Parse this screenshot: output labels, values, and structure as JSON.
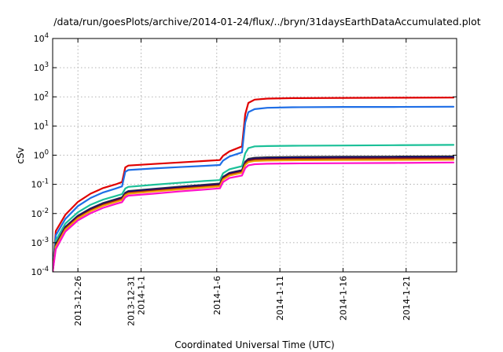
{
  "chart_data": {
    "type": "line",
    "title": "/data/run/goesPlots/archive/2014-01-24/flux/../bryn/31daysEarthDataAccumulated.plot",
    "xlabel": "Coordinated Universal Time (UTC)",
    "ylabel": "cSv",
    "y_scale": "log",
    "ylim": [
      0.0001,
      10000
    ],
    "xlim": [
      "2013-12-24",
      "2014-01-25"
    ],
    "grid": true,
    "legend": "none",
    "x_ticks": [
      {
        "date": "2013-12-26",
        "lines": [
          "2013-12-26"
        ]
      },
      {
        "date": "2013-12-31",
        "lines": [
          "2013-12-31",
          "2014-1-1"
        ]
      },
      {
        "date": "2014-01-06",
        "lines": [
          "2014-1-6"
        ]
      },
      {
        "date": "2014-01-11",
        "lines": [
          "2014-1-11"
        ]
      },
      {
        "date": "2014-01-16",
        "lines": [
          "2014-1-16"
        ]
      },
      {
        "date": "2014-01-21",
        "lines": [
          "2014-1-21"
        ]
      }
    ],
    "y_ticks": [
      {
        "value": 0.0001,
        "base": "10",
        "exp": "-4"
      },
      {
        "value": 0.001,
        "base": "10",
        "exp": "-3"
      },
      {
        "value": 0.01,
        "base": "10",
        "exp": "-2"
      },
      {
        "value": 0.1,
        "base": "10",
        "exp": "-1"
      },
      {
        "value": 1,
        "base": "10",
        "exp": "0"
      },
      {
        "value": 10,
        "base": "10",
        "exp": "1"
      },
      {
        "value": 100,
        "base": "10",
        "exp": "2"
      },
      {
        "value": 1000,
        "base": "10",
        "exp": "3"
      },
      {
        "value": 10000,
        "base": "10",
        "exp": "4"
      }
    ],
    "series": [
      {
        "color": "#e00000",
        "points": [
          [
            "2013-12-24",
            0.0001
          ],
          [
            "2013-12-24 06:00",
            0.0025
          ],
          [
            "2013-12-25",
            0.009
          ],
          [
            "2013-12-26",
            0.025
          ],
          [
            "2013-12-27",
            0.048
          ],
          [
            "2013-12-28",
            0.075
          ],
          [
            "2013-12-29",
            0.1
          ],
          [
            "2013-12-29 12:00",
            0.12
          ],
          [
            "2013-12-29 18:00",
            0.38
          ],
          [
            "2013-12-30",
            0.44
          ],
          [
            "2014-01-01",
            0.5
          ],
          [
            "2014-01-03",
            0.56
          ],
          [
            "2014-01-05",
            0.63
          ],
          [
            "2014-01-06 06:00",
            0.68
          ],
          [
            "2014-01-06 12:00",
            0.95
          ],
          [
            "2014-01-07",
            1.35
          ],
          [
            "2014-01-08",
            2.0
          ],
          [
            "2014-01-08 06:00",
            25
          ],
          [
            "2014-01-08 12:00",
            62
          ],
          [
            "2014-01-09",
            80
          ],
          [
            "2014-01-10",
            87
          ],
          [
            "2014-01-12",
            90
          ],
          [
            "2014-01-16",
            92
          ],
          [
            "2014-01-20",
            93
          ],
          [
            "2014-01-24 18:00",
            94
          ]
        ]
      },
      {
        "color": "#1e6ee6",
        "points": [
          [
            "2013-12-24",
            0.0001
          ],
          [
            "2013-12-24 06:00",
            0.0018
          ],
          [
            "2013-12-25",
            0.0065
          ],
          [
            "2013-12-26",
            0.018
          ],
          [
            "2013-12-27",
            0.034
          ],
          [
            "2013-12-28",
            0.053
          ],
          [
            "2013-12-29",
            0.072
          ],
          [
            "2013-12-29 12:00",
            0.085
          ],
          [
            "2013-12-29 18:00",
            0.27
          ],
          [
            "2013-12-30",
            0.31
          ],
          [
            "2014-01-01",
            0.35
          ],
          [
            "2014-01-03",
            0.39
          ],
          [
            "2014-01-05",
            0.43
          ],
          [
            "2014-01-06 06:00",
            0.46
          ],
          [
            "2014-01-06 12:00",
            0.65
          ],
          [
            "2014-01-07",
            0.9
          ],
          [
            "2014-01-08",
            1.25
          ],
          [
            "2014-01-08 06:00",
            13
          ],
          [
            "2014-01-08 12:00",
            30
          ],
          [
            "2014-01-09",
            38
          ],
          [
            "2014-01-10",
            42
          ],
          [
            "2014-01-12",
            44
          ],
          [
            "2014-01-16",
            45
          ],
          [
            "2014-01-20",
            45
          ],
          [
            "2014-01-24 18:00",
            46
          ]
        ]
      },
      {
        "color": "#1bc098",
        "points": [
          [
            "2013-12-24",
            0.0001
          ],
          [
            "2013-12-24 06:00",
            0.0012
          ],
          [
            "2013-12-25",
            0.0045
          ],
          [
            "2013-12-26",
            0.011
          ],
          [
            "2013-12-27",
            0.02
          ],
          [
            "2013-12-28",
            0.03
          ],
          [
            "2013-12-29",
            0.04
          ],
          [
            "2013-12-29 12:00",
            0.046
          ],
          [
            "2013-12-29 18:00",
            0.072
          ],
          [
            "2013-12-30",
            0.082
          ],
          [
            "2014-01-01",
            0.097
          ],
          [
            "2014-01-03",
            0.113
          ],
          [
            "2014-01-05",
            0.13
          ],
          [
            "2014-01-06 06:00",
            0.14
          ],
          [
            "2014-01-06 12:00",
            0.24
          ],
          [
            "2014-01-07",
            0.33
          ],
          [
            "2014-01-08",
            0.42
          ],
          [
            "2014-01-08 06:00",
            1.15
          ],
          [
            "2014-01-08 12:00",
            1.75
          ],
          [
            "2014-01-09",
            2.0
          ],
          [
            "2014-01-10",
            2.05
          ],
          [
            "2014-01-12",
            2.1
          ],
          [
            "2014-01-16",
            2.15
          ],
          [
            "2014-01-20",
            2.2
          ],
          [
            "2014-01-24 18:00",
            2.25
          ]
        ]
      },
      {
        "color": "#404040",
        "points": [
          [
            "2013-12-24",
            0.0001
          ],
          [
            "2013-12-24 06:00",
            0.0009
          ],
          [
            "2013-12-25",
            0.0035
          ],
          [
            "2013-12-26",
            0.0085
          ],
          [
            "2013-12-27",
            0.015
          ],
          [
            "2013-12-28",
            0.023
          ],
          [
            "2013-12-29",
            0.031
          ],
          [
            "2013-12-29 12:00",
            0.036
          ],
          [
            "2013-12-29 18:00",
            0.052
          ],
          [
            "2013-12-30",
            0.059
          ],
          [
            "2014-01-01",
            0.07
          ],
          [
            "2014-01-03",
            0.083
          ],
          [
            "2014-01-05",
            0.097
          ],
          [
            "2014-01-06 06:00",
            0.107
          ],
          [
            "2014-01-06 12:00",
            0.18
          ],
          [
            "2014-01-07",
            0.25
          ],
          [
            "2014-01-08",
            0.31
          ],
          [
            "2014-01-08 06:00",
            0.6
          ],
          [
            "2014-01-08 12:00",
            0.75
          ],
          [
            "2014-01-09",
            0.82
          ],
          [
            "2014-01-10",
            0.85
          ],
          [
            "2014-01-12",
            0.87
          ],
          [
            "2014-01-16",
            0.89
          ],
          [
            "2014-01-20",
            0.9
          ],
          [
            "2014-01-24 18:00",
            0.92
          ]
        ]
      },
      {
        "color": "#000080",
        "points": [
          [
            "2013-12-24",
            0.0001
          ],
          [
            "2013-12-24 06:00",
            0.00085
          ],
          [
            "2013-12-25",
            0.0033
          ],
          [
            "2013-12-26",
            0.008
          ],
          [
            "2013-12-27",
            0.0142
          ],
          [
            "2013-12-28",
            0.0218
          ],
          [
            "2013-12-29",
            0.0295
          ],
          [
            "2013-12-29 12:00",
            0.034
          ],
          [
            "2013-12-29 18:00",
            0.049
          ],
          [
            "2013-12-30",
            0.056
          ],
          [
            "2014-01-01",
            0.066
          ],
          [
            "2014-01-03",
            0.078
          ],
          [
            "2014-01-05",
            0.091
          ],
          [
            "2014-01-06 06:00",
            0.1
          ],
          [
            "2014-01-06 12:00",
            0.17
          ],
          [
            "2014-01-07",
            0.235
          ],
          [
            "2014-01-08",
            0.29
          ],
          [
            "2014-01-08 06:00",
            0.56
          ],
          [
            "2014-01-08 12:00",
            0.7
          ],
          [
            "2014-01-09",
            0.76
          ],
          [
            "2014-01-10",
            0.79
          ],
          [
            "2014-01-12",
            0.81
          ],
          [
            "2014-01-16",
            0.83
          ],
          [
            "2014-01-20",
            0.84
          ],
          [
            "2014-01-24 18:00",
            0.85
          ]
        ]
      },
      {
        "color": "#8b1a1a",
        "points": [
          [
            "2013-12-24",
            0.0001
          ],
          [
            "2013-12-24 06:00",
            0.0008
          ],
          [
            "2013-12-25",
            0.0031
          ],
          [
            "2013-12-26",
            0.0075
          ],
          [
            "2013-12-27",
            0.0133
          ],
          [
            "2013-12-28",
            0.0205
          ],
          [
            "2013-12-29",
            0.0277
          ],
          [
            "2013-12-29 12:00",
            0.032
          ],
          [
            "2013-12-29 18:00",
            0.046
          ],
          [
            "2013-12-30",
            0.052
          ],
          [
            "2014-01-01",
            0.062
          ],
          [
            "2014-01-03",
            0.073
          ],
          [
            "2014-01-05",
            0.085
          ],
          [
            "2014-01-06 06:00",
            0.094
          ],
          [
            "2014-01-06 12:00",
            0.16
          ],
          [
            "2014-01-07",
            0.22
          ],
          [
            "2014-01-08",
            0.27
          ],
          [
            "2014-01-08 06:00",
            0.52
          ],
          [
            "2014-01-08 12:00",
            0.65
          ],
          [
            "2014-01-09",
            0.71
          ],
          [
            "2014-01-10",
            0.73
          ],
          [
            "2014-01-12",
            0.75
          ],
          [
            "2014-01-16",
            0.77
          ],
          [
            "2014-01-20",
            0.78
          ],
          [
            "2014-01-24 18:00",
            0.79
          ]
        ]
      },
      {
        "color": "#f0a000",
        "points": [
          [
            "2013-12-24",
            0.0001
          ],
          [
            "2013-12-24 06:00",
            0.00072
          ],
          [
            "2013-12-25",
            0.0028
          ],
          [
            "2013-12-26",
            0.0068
          ],
          [
            "2013-12-27",
            0.012
          ],
          [
            "2013-12-28",
            0.0185
          ],
          [
            "2013-12-29",
            0.025
          ],
          [
            "2013-12-29 12:00",
            0.029
          ],
          [
            "2013-12-29 18:00",
            0.042
          ],
          [
            "2013-12-30",
            0.048
          ],
          [
            "2014-01-01",
            0.057
          ],
          [
            "2014-01-03",
            0.067
          ],
          [
            "2014-01-05",
            0.078
          ],
          [
            "2014-01-06 06:00",
            0.086
          ],
          [
            "2014-01-06 12:00",
            0.145
          ],
          [
            "2014-01-07",
            0.2
          ],
          [
            "2014-01-08",
            0.25
          ],
          [
            "2014-01-08 06:00",
            0.46
          ],
          [
            "2014-01-08 12:00",
            0.58
          ],
          [
            "2014-01-09",
            0.63
          ],
          [
            "2014-01-10",
            0.65
          ],
          [
            "2014-01-12",
            0.67
          ],
          [
            "2014-01-16",
            0.68
          ],
          [
            "2014-01-20",
            0.69
          ],
          [
            "2014-01-24 18:00",
            0.7
          ]
        ]
      },
      {
        "color": "#ff10c8",
        "points": [
          [
            "2013-12-24",
            0.0001
          ],
          [
            "2013-12-24 06:00",
            0.0006
          ],
          [
            "2013-12-25",
            0.0024
          ],
          [
            "2013-12-26",
            0.0058
          ],
          [
            "2013-12-27",
            0.0102
          ],
          [
            "2013-12-28",
            0.0157
          ],
          [
            "2013-12-29",
            0.0212
          ],
          [
            "2013-12-29 12:00",
            0.0245
          ],
          [
            "2013-12-29 18:00",
            0.036
          ],
          [
            "2013-12-30",
            0.041
          ],
          [
            "2014-01-01",
            0.048
          ],
          [
            "2014-01-03",
            0.057
          ],
          [
            "2014-01-05",
            0.066
          ],
          [
            "2014-01-06 06:00",
            0.073
          ],
          [
            "2014-01-06 12:00",
            0.12
          ],
          [
            "2014-01-07",
            0.165
          ],
          [
            "2014-01-08",
            0.2
          ],
          [
            "2014-01-08 06:00",
            0.36
          ],
          [
            "2014-01-08 12:00",
            0.45
          ],
          [
            "2014-01-09",
            0.49
          ],
          [
            "2014-01-10",
            0.51
          ],
          [
            "2014-01-12",
            0.52
          ],
          [
            "2014-01-16",
            0.53
          ],
          [
            "2014-01-20",
            0.54
          ],
          [
            "2014-01-24 18:00",
            0.56
          ]
        ]
      }
    ]
  }
}
